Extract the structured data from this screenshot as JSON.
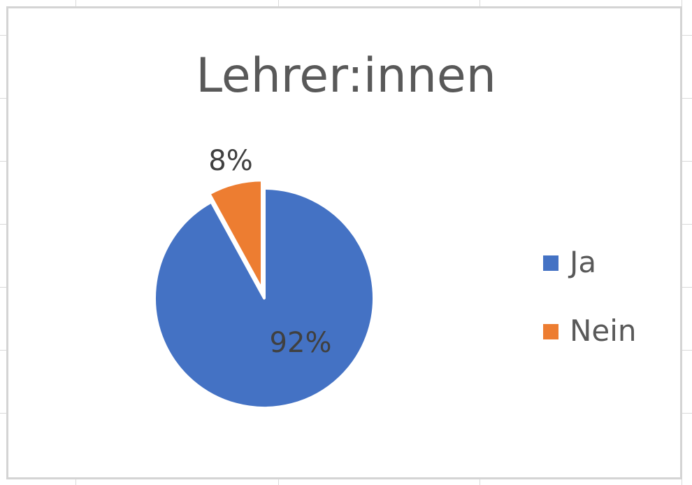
{
  "chart_data": {
    "type": "pie",
    "title": "Lehrer:innen",
    "categories": [
      "Ja",
      "Nein"
    ],
    "values": [
      92,
      8
    ],
    "data_labels": [
      "92%",
      "8%"
    ],
    "colors": [
      "#4472c4",
      "#ed7d31"
    ],
    "legend": {
      "position": "right",
      "items": [
        {
          "label": "Ja",
          "color": "#4472c4"
        },
        {
          "label": "Nein",
          "color": "#ed7d31"
        }
      ]
    },
    "exploded_slice": "Nein"
  }
}
